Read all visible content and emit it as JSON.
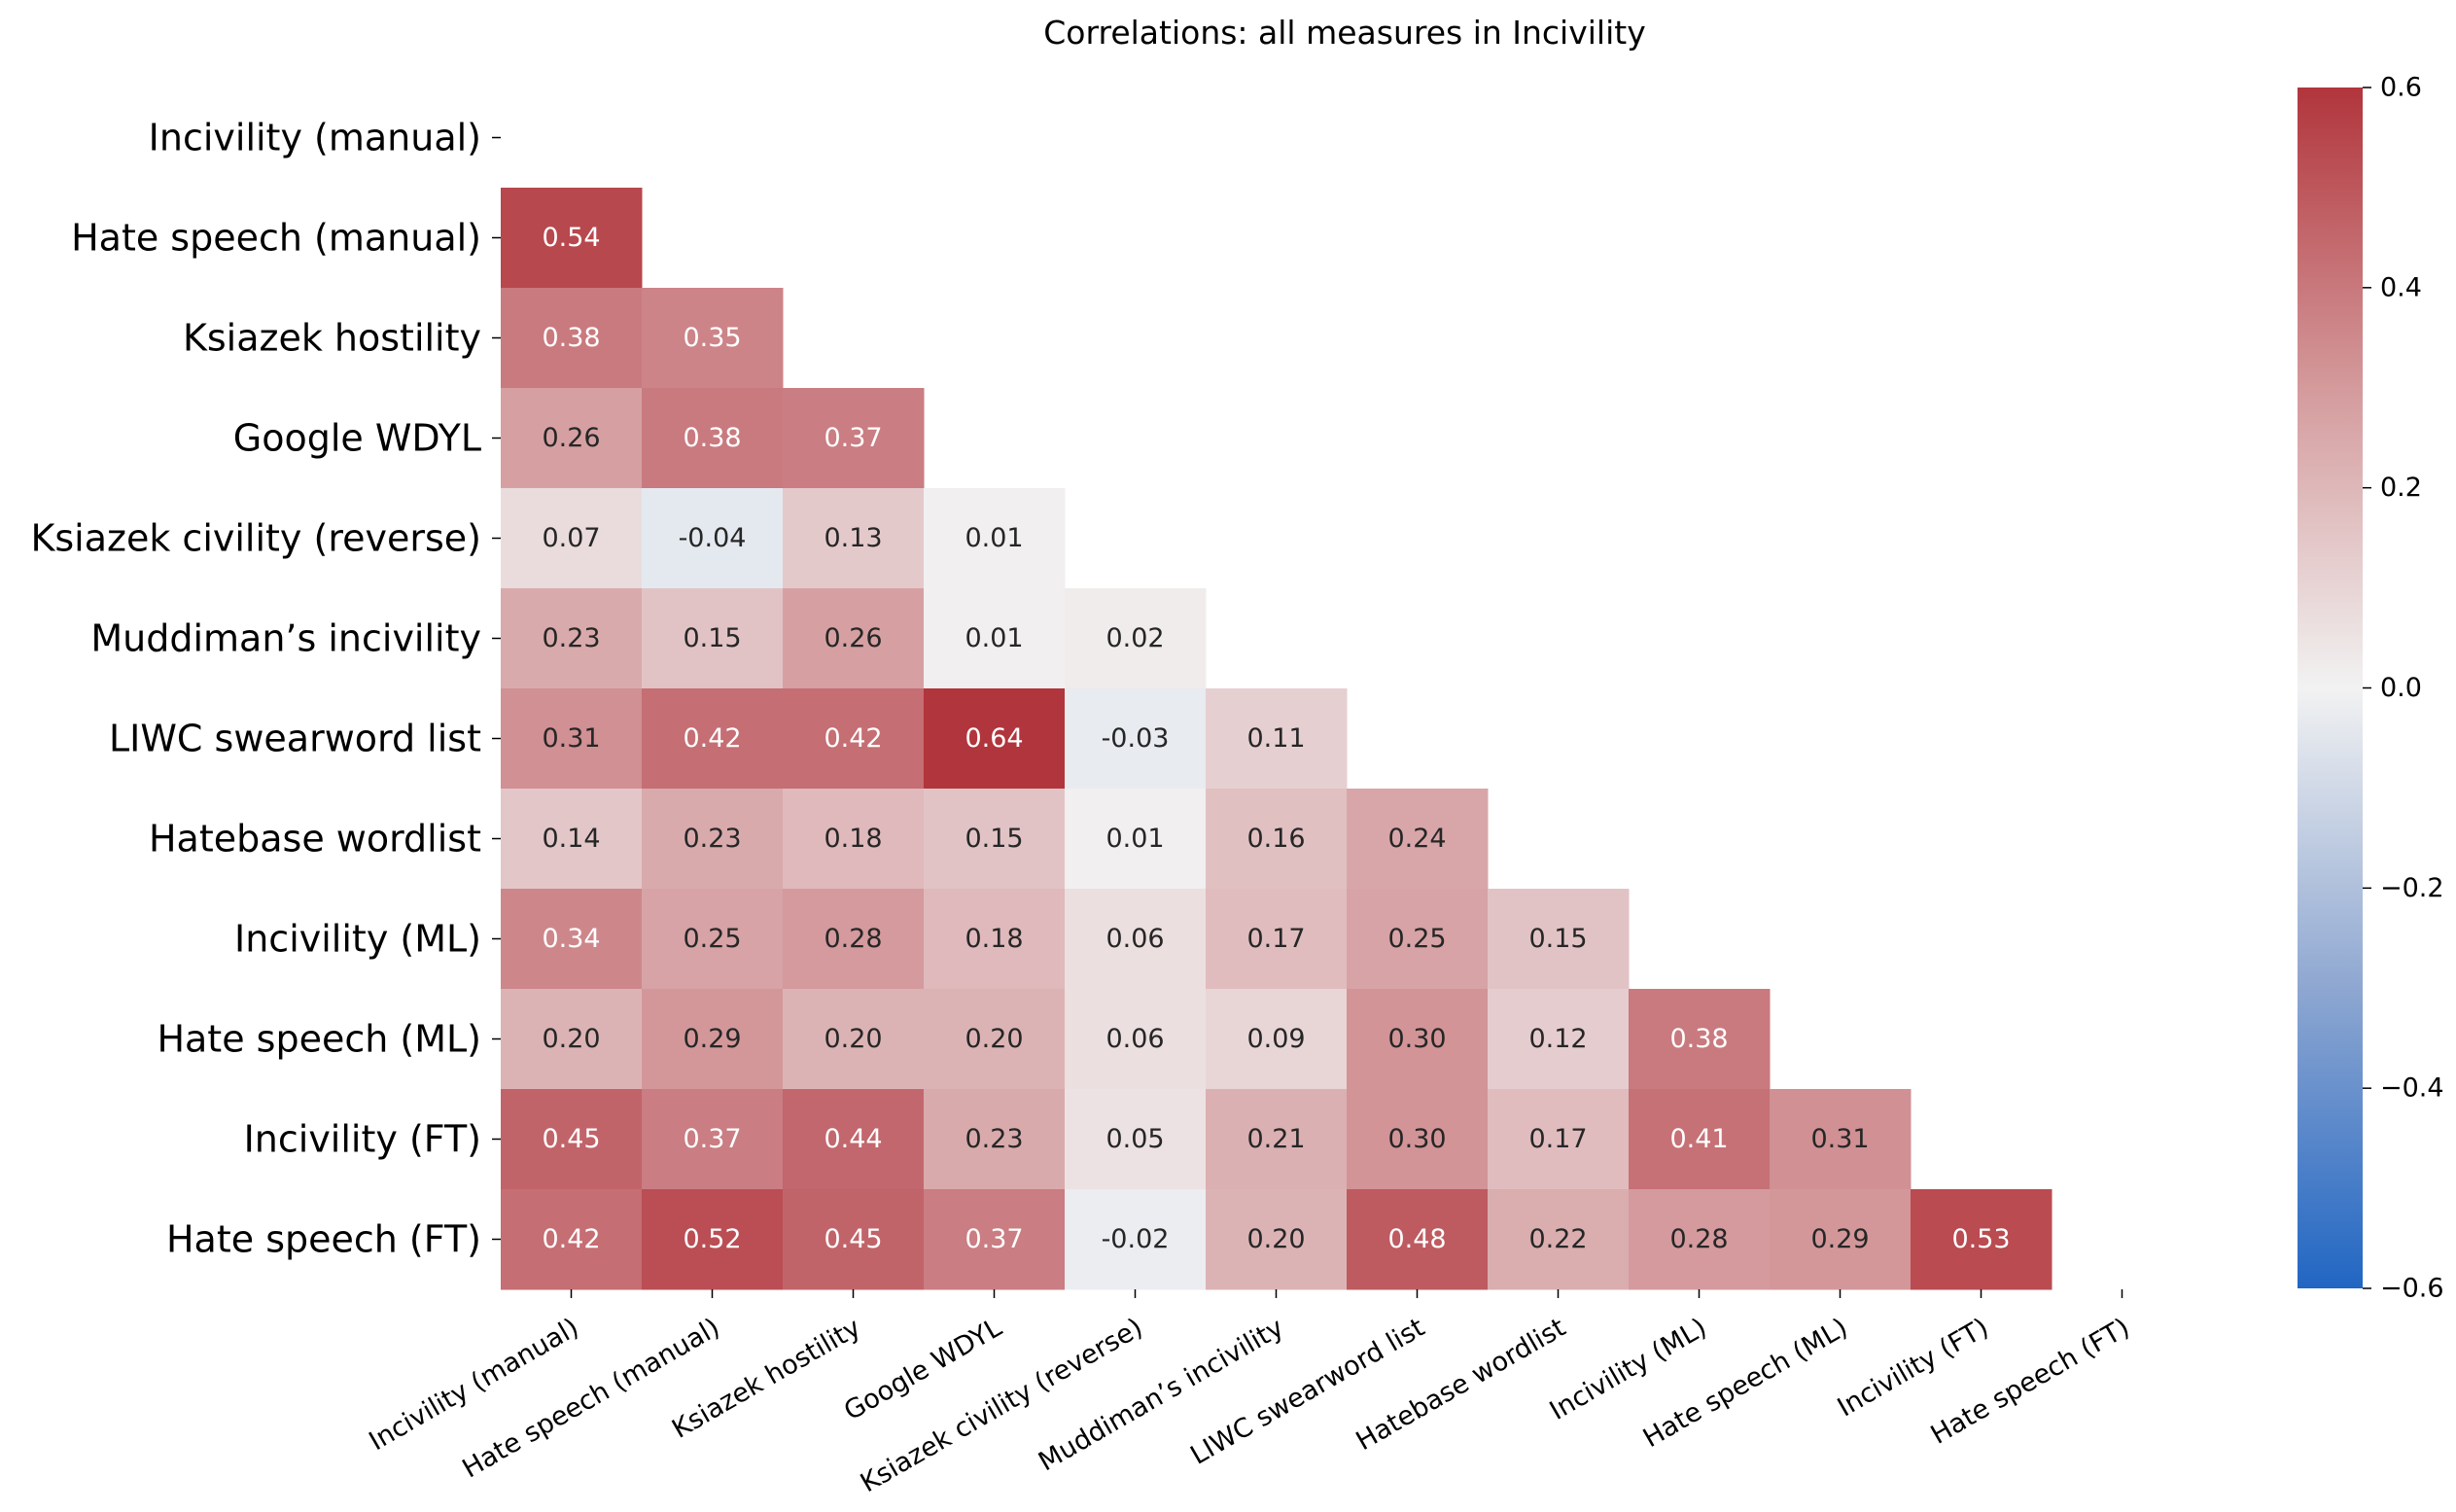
{
  "chart_data": {
    "type": "heatmap",
    "title": "Correlations: all measures in Incivility",
    "labels": [
      "Incivility (manual)",
      "Hate speech (manual)",
      "Ksiazek hostility",
      "Google WDYL",
      "Ksiazek civility (reverse)",
      "Muddiman’s incivility",
      "LIWC swearword list",
      "Hatebase wordlist",
      "Incivility (ML)",
      "Hate speech (ML)",
      "Incivility (FT)",
      "Hate speech (FT)"
    ],
    "matrix": [
      [],
      [
        0.54
      ],
      [
        0.38,
        0.35
      ],
      [
        0.26,
        0.38,
        0.37
      ],
      [
        0.07,
        -0.04,
        0.13,
        0.01
      ],
      [
        0.23,
        0.15,
        0.26,
        0.01,
        0.02
      ],
      [
        0.31,
        0.42,
        0.42,
        0.64,
        -0.03,
        0.11
      ],
      [
        0.14,
        0.23,
        0.18,
        0.15,
        0.01,
        0.16,
        0.24
      ],
      [
        0.34,
        0.25,
        0.28,
        0.18,
        0.06,
        0.17,
        0.25,
        0.15
      ],
      [
        0.2,
        0.29,
        0.2,
        0.2,
        0.06,
        0.09,
        0.3,
        0.12,
        0.38
      ],
      [
        0.45,
        0.37,
        0.44,
        0.23,
        0.05,
        0.21,
        0.3,
        0.17,
        0.41,
        0.31
      ],
      [
        0.42,
        0.52,
        0.45,
        0.37,
        -0.02,
        0.2,
        0.48,
        0.22,
        0.28,
        0.29,
        0.53
      ]
    ],
    "mask": "upper-triangle-and-diagonal",
    "value_format": "0.00",
    "colormap": {
      "name": "diverging blue-white-red",
      "min_color": "#2166c3",
      "mid_color": "#f2f2f2",
      "max_color": "#b1353c"
    },
    "colorbar": {
      "vmin": -0.6,
      "vmax": 0.6,
      "ticks": [
        "−0.6",
        "−0.4",
        "−0.2",
        "0.0",
        "0.2",
        "0.4",
        "0.6"
      ],
      "tick_values": [
        -0.6,
        -0.4,
        -0.2,
        0.0,
        0.2,
        0.4,
        0.6
      ]
    }
  }
}
